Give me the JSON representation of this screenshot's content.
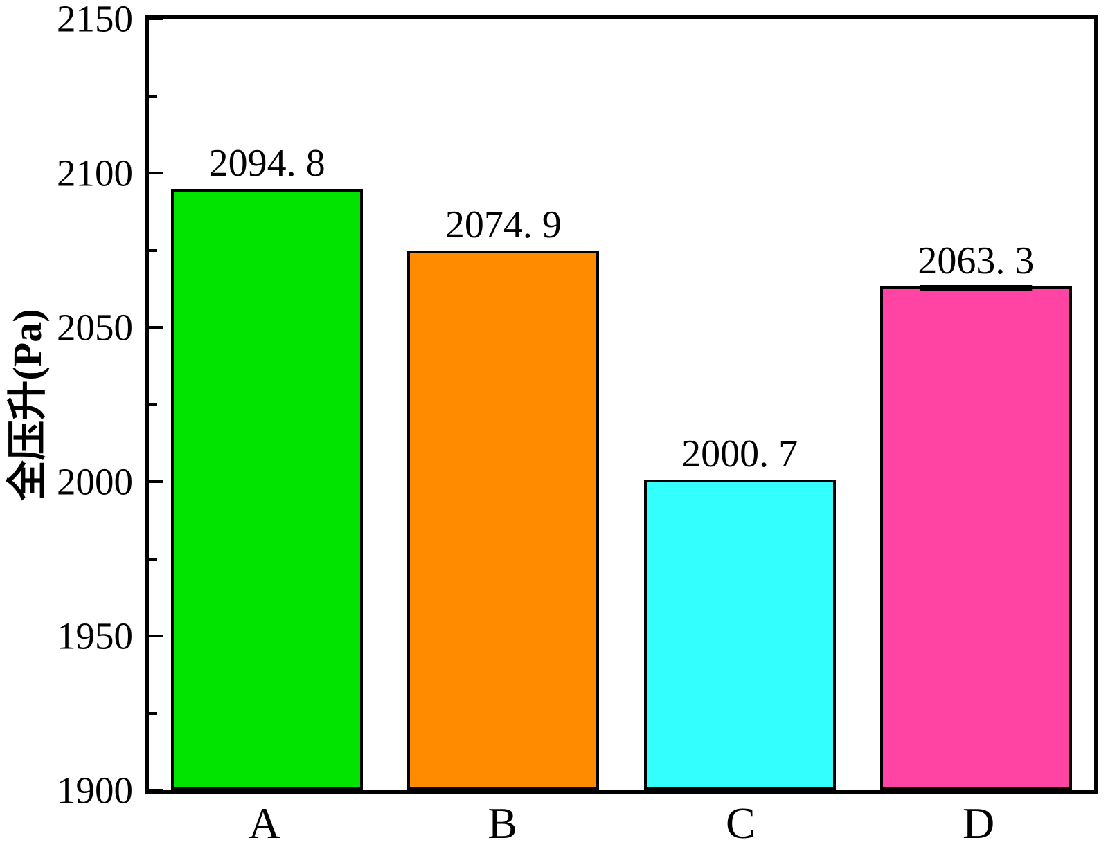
{
  "chart_data": {
    "type": "bar",
    "title": "",
    "categories": [
      "A",
      "B",
      "C",
      "D"
    ],
    "values": [
      2094.8,
      2074.9,
      2000.7,
      2063.3
    ],
    "value_label_texts": [
      "2094. 8",
      "2074. 9",
      "2000. 7",
      "2063. 3"
    ],
    "bar_colors": [
      "#00E400",
      "#FF8C00",
      "#33FFFF",
      "#FF44A4"
    ],
    "bar_border_color": "#000000",
    "error_cap_bar_indices": [
      3
    ],
    "ylabel": "全压升(Pa)",
    "xlabel": "",
    "ylim": [
      1900,
      2150
    ],
    "y_major_tick_step": 50,
    "y_minor_tick_step": 25,
    "y_tick_labels": [
      "1900",
      "1950",
      "2000",
      "2050",
      "2100",
      "2150"
    ],
    "tick_direction": "in",
    "grid": false,
    "legend_position": "none",
    "axis_color": "#000000",
    "background_color": "#FFFFFF"
  }
}
